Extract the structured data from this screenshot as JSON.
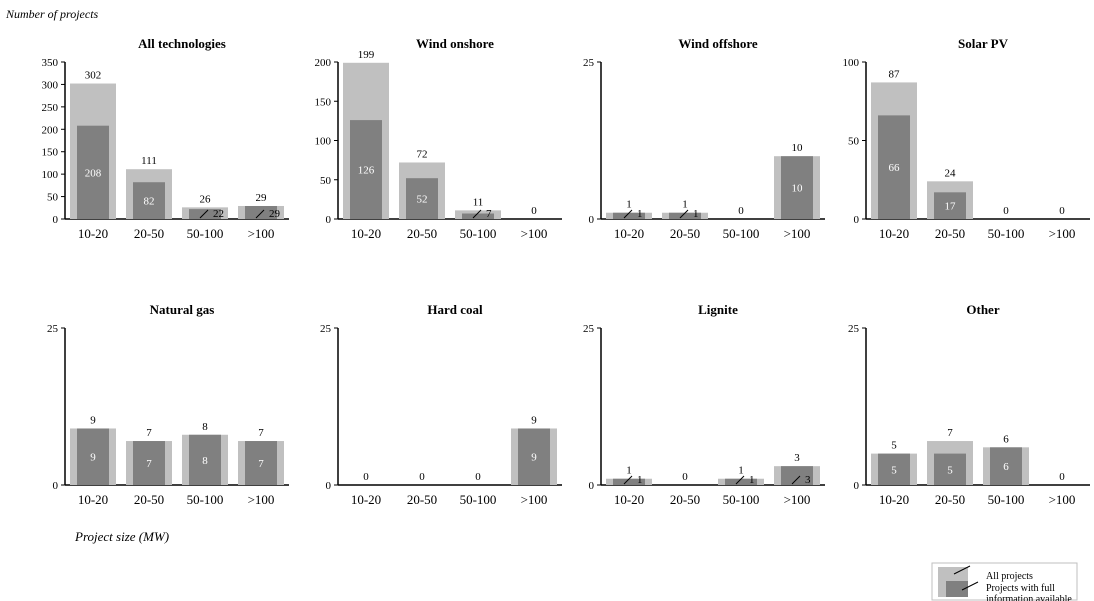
{
  "figure": {
    "y_axis_label": "Number of projects",
    "x_axis_label": "Project size (MW)"
  },
  "legend": {
    "items": [
      {
        "label": "All projects",
        "color": "#c0c0c0"
      },
      {
        "label": "Projects with full information available",
        "color": "#808080"
      }
    ]
  },
  "chart_data": [
    {
      "type": "bar",
      "title": "All technologies",
      "categories": [
        "10-20",
        "20-50",
        "50-100",
        ">100"
      ],
      "ylim": [
        0,
        350
      ],
      "yticks": [
        0,
        50,
        100,
        150,
        200,
        250,
        300,
        350
      ],
      "series": [
        {
          "name": "All projects",
          "values": [
            302,
            111,
            26,
            29
          ]
        },
        {
          "name": "Projects with full information available",
          "values": [
            208,
            82,
            22,
            29
          ]
        }
      ]
    },
    {
      "type": "bar",
      "title": "Wind onshore",
      "categories": [
        "10-20",
        "20-50",
        "50-100",
        ">100"
      ],
      "ylim": [
        0,
        200
      ],
      "yticks": [
        0,
        50,
        100,
        150,
        200
      ],
      "series": [
        {
          "name": "All projects",
          "values": [
            199,
            72,
            11,
            0
          ]
        },
        {
          "name": "Projects with full information available",
          "values": [
            126,
            52,
            7,
            0
          ]
        }
      ]
    },
    {
      "type": "bar",
      "title": "Wind offshore",
      "categories": [
        "10-20",
        "20-50",
        "50-100",
        ">100"
      ],
      "ylim": [
        0,
        25
      ],
      "yticks": [
        0,
        25
      ],
      "series": [
        {
          "name": "All projects",
          "values": [
            1,
            1,
            0,
            10
          ]
        },
        {
          "name": "Projects with full information available",
          "values": [
            1,
            1,
            0,
            10
          ]
        }
      ]
    },
    {
      "type": "bar",
      "title": "Solar PV",
      "categories": [
        "10-20",
        "20-50",
        "50-100",
        ">100"
      ],
      "ylim": [
        0,
        100
      ],
      "yticks": [
        0,
        50,
        100
      ],
      "series": [
        {
          "name": "All projects",
          "values": [
            87,
            24,
            0,
            0
          ]
        },
        {
          "name": "Projects with full information available",
          "values": [
            66,
            17,
            0,
            0
          ]
        }
      ]
    },
    {
      "type": "bar",
      "title": "Natural gas",
      "categories": [
        "10-20",
        "20-50",
        "50-100",
        ">100"
      ],
      "ylim": [
        0,
        25
      ],
      "yticks": [
        0,
        25
      ],
      "series": [
        {
          "name": "All projects",
          "values": [
            9,
            7,
            8,
            7
          ]
        },
        {
          "name": "Projects with full information available",
          "values": [
            9,
            7,
            8,
            7
          ]
        }
      ]
    },
    {
      "type": "bar",
      "title": "Hard coal",
      "categories": [
        "10-20",
        "20-50",
        "50-100",
        ">100"
      ],
      "ylim": [
        0,
        25
      ],
      "yticks": [
        0,
        25
      ],
      "series": [
        {
          "name": "All projects",
          "values": [
            0,
            0,
            0,
            9
          ]
        },
        {
          "name": "Projects with full information available",
          "values": [
            0,
            0,
            0,
            9
          ]
        }
      ]
    },
    {
      "type": "bar",
      "title": "Lignite",
      "categories": [
        "10-20",
        "20-50",
        "50-100",
        ">100"
      ],
      "ylim": [
        0,
        25
      ],
      "yticks": [
        0,
        25
      ],
      "series": [
        {
          "name": "All projects",
          "values": [
            1,
            0,
            1,
            3
          ]
        },
        {
          "name": "Projects with full information available",
          "values": [
            1,
            0,
            1,
            3
          ]
        }
      ]
    },
    {
      "type": "bar",
      "title": "Other",
      "categories": [
        "10-20",
        "20-50",
        "50-100",
        ">100"
      ],
      "ylim": [
        0,
        25
      ],
      "yticks": [
        0,
        25
      ],
      "series": [
        {
          "name": "All projects",
          "values": [
            5,
            7,
            6,
            0
          ]
        },
        {
          "name": "Projects with full information available",
          "values": [
            5,
            5,
            6,
            0
          ]
        }
      ]
    }
  ]
}
